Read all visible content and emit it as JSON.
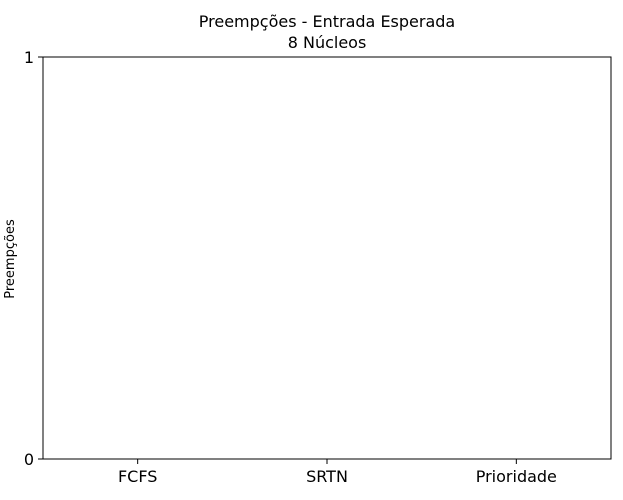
{
  "chart_data": {
    "type": "bar",
    "title": "Preempções - Entrada Esperada",
    "subtitle": "8 Núcleos",
    "xlabel": "",
    "ylabel": "Preempções",
    "categories": [
      "FCFS",
      "SRTN",
      "Prioridade"
    ],
    "values": [
      0,
      0,
      0
    ],
    "ylim": [
      0,
      1
    ],
    "yticks": [
      "0",
      "1"
    ],
    "grid": false,
    "legend": "none"
  }
}
